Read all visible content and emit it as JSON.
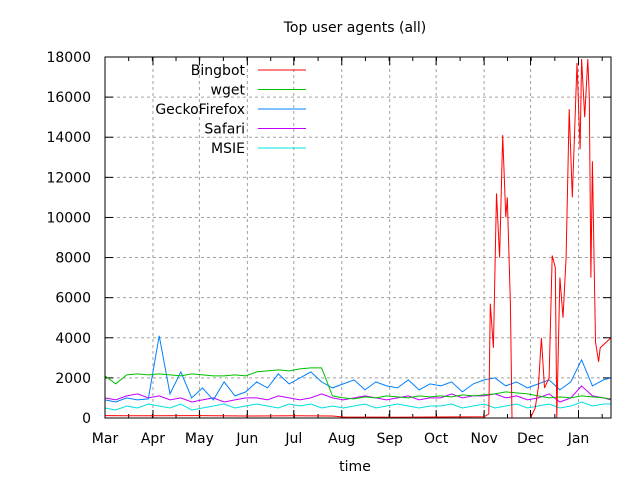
{
  "chart_data": {
    "type": "line",
    "title": "Top user agents (all)",
    "xlabel": "time",
    "ylabel": "",
    "ylim": [
      0,
      18000
    ],
    "yticks": [
      0,
      2000,
      4000,
      6000,
      8000,
      10000,
      12000,
      14000,
      16000,
      18000
    ],
    "xlim": [
      "Mar 1",
      "Jan 22"
    ],
    "xticks": [
      "Mar",
      "Apr",
      "May",
      "Jun",
      "Jul",
      "Aug",
      "Sep",
      "Oct",
      "Nov",
      "Dec",
      "Jan"
    ],
    "grid": true,
    "legend_position": "top-left",
    "x": [
      "Mar 1",
      "Mar 8",
      "Mar 15",
      "Mar 22",
      "Mar 29",
      "Apr 5",
      "Apr 12",
      "Apr 19",
      "Apr 26",
      "May 3",
      "May 10",
      "May 17",
      "May 24",
      "May 31",
      "Jun 7",
      "Jun 14",
      "Jun 21",
      "Jun 28",
      "Jul 5",
      "Jul 12",
      "Jul 19",
      "Jul 26",
      "Aug 2",
      "Aug 9",
      "Aug 16",
      "Aug 23",
      "Aug 30",
      "Sep 6",
      "Sep 13",
      "Sep 20",
      "Sep 27",
      "Oct 4",
      "Oct 11",
      "Oct 18",
      "Oct 25",
      "Nov 1",
      "Nov 8",
      "Nov 15",
      "Nov 22",
      "Nov 29",
      "Dec 6",
      "Dec 13",
      "Dec 20",
      "Dec 27",
      "Jan 3",
      "Jan 10",
      "Jan 17",
      "Jan 22"
    ],
    "series": [
      {
        "name": "Bingbot",
        "color": "#ff0000",
        "points": [
          [
            "Mar 1",
            120
          ],
          [
            "Apr 1",
            110
          ],
          [
            "May 1",
            120
          ],
          [
            "Jun 1",
            100
          ],
          [
            "Jul 1",
            110
          ],
          [
            "Jul 26",
            100
          ],
          [
            "Aug 2",
            50
          ],
          [
            "Sep 1",
            40
          ],
          [
            "Oct 1",
            50
          ],
          [
            "Nov 1",
            60
          ],
          [
            "Nov 4",
            200
          ],
          [
            "Nov 5",
            5700
          ],
          [
            "Nov 7",
            3500
          ],
          [
            "Nov 9",
            11200
          ],
          [
            "Nov 11",
            8000
          ],
          [
            "Nov 13",
            14100
          ],
          [
            "Nov 15",
            10000
          ],
          [
            "Nov 16",
            11000
          ],
          [
            "Nov 18",
            5700
          ],
          [
            "Nov 19",
            0
          ],
          [
            "Dec 1",
            0
          ],
          [
            "Dec 4",
            500
          ],
          [
            "Dec 6",
            1500
          ],
          [
            "Dec 8",
            4000
          ],
          [
            "Dec 10",
            1500
          ],
          [
            "Dec 13",
            2000
          ],
          [
            "Dec 15",
            8100
          ],
          [
            "Dec 17",
            7500
          ],
          [
            "Dec 18",
            0
          ],
          [
            "Dec 20",
            7000
          ],
          [
            "Dec 22",
            5000
          ],
          [
            "Dec 24",
            8000
          ],
          [
            "Dec 26",
            15400
          ],
          [
            "Dec 28",
            11000
          ],
          [
            "Dec 31",
            17700
          ],
          [
            "Jan 2",
            13400
          ],
          [
            "Jan 3",
            17900
          ],
          [
            "Jan 5",
            15000
          ],
          [
            "Jan 7",
            17900
          ],
          [
            "Jan 8",
            16000
          ],
          [
            "Jan 9",
            7000
          ],
          [
            "Jan 10",
            12800
          ],
          [
            "Jan 12",
            3800
          ],
          [
            "Jan 14",
            2800
          ],
          [
            "Jan 15",
            3500
          ],
          [
            "Jan 22",
            4000
          ]
        ]
      },
      {
        "name": "wget",
        "color": "#00c000",
        "values": [
          2100,
          1700,
          2150,
          2200,
          2150,
          2200,
          2150,
          2100,
          2200,
          2150,
          2100,
          2100,
          2150,
          2100,
          2300,
          2350,
          2400,
          2350,
          2450,
          2500,
          2500,
          1100,
          1000,
          950,
          1050,
          1000,
          1100,
          1050,
          1000,
          1100,
          1050,
          1100,
          1050,
          1150,
          1100,
          1150,
          1200,
          1300,
          1250,
          1200,
          1100,
          1000,
          1050,
          1000,
          1100,
          1050,
          1000,
          950
        ]
      },
      {
        "name": "GeckoFirefox",
        "color": "#0080ff",
        "values": [
          900,
          800,
          1000,
          900,
          950,
          4100,
          1200,
          2300,
          1000,
          1500,
          900,
          1800,
          1100,
          1300,
          1800,
          1500,
          2200,
          1700,
          2000,
          2300,
          1800,
          1500,
          1700,
          1900,
          1400,
          1800,
          1600,
          1500,
          1900,
          1400,
          1700,
          1600,
          1800,
          1300,
          1700,
          1900,
          2000,
          1600,
          1800,
          1500,
          1700,
          1900,
          1400,
          1800,
          2900,
          1600,
          1900,
          2000
        ]
      },
      {
        "name": "Safari",
        "color": "#c000ff",
        "values": [
          1000,
          900,
          1100,
          1200,
          1000,
          1100,
          900,
          1000,
          800,
          900,
          1000,
          800,
          900,
          1000,
          1000,
          900,
          1100,
          1000,
          900,
          1000,
          1200,
          1000,
          900,
          1000,
          1100,
          1000,
          900,
          1000,
          1100,
          900,
          1000,
          1000,
          1200,
          1000,
          1100,
          1100,
          1200,
          1000,
          1100,
          900,
          1000,
          1200,
          800,
          1000,
          1600,
          1100,
          1000,
          900
        ]
      },
      {
        "name": "MSIE",
        "color": "#00e0e0",
        "values": [
          500,
          400,
          600,
          500,
          700,
          600,
          500,
          700,
          400,
          500,
          600,
          700,
          500,
          600,
          700,
          600,
          500,
          700,
          600,
          700,
          500,
          600,
          500,
          600,
          700,
          500,
          600,
          700,
          600,
          500,
          600,
          600,
          700,
          500,
          600,
          700,
          500,
          600,
          700,
          500,
          600,
          700,
          500,
          600,
          800,
          600,
          700,
          700
        ]
      }
    ]
  }
}
